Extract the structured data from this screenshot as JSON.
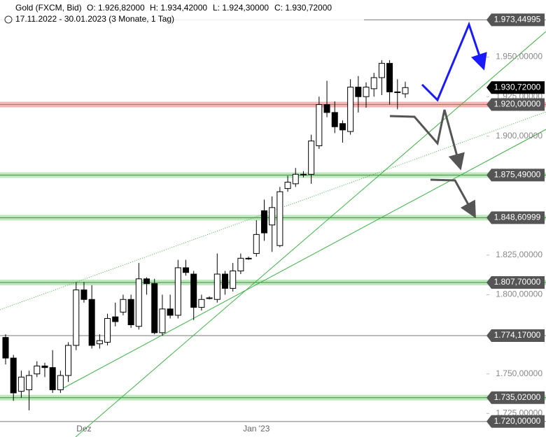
{
  "chart_data": {
    "type": "candlestick",
    "title": "Gold (FXCM, Bid)",
    "quote": [
      "O: 1.926,82000",
      "H: 1.934,42000",
      "L: 1.924,30000",
      "C: 1.930,72000"
    ],
    "subtitle": "17.11.2022 - 30.01.2023 (3 Monate, 1 Tag)",
    "categories": [
      null,
      null,
      null,
      null,
      null,
      null,
      null,
      null,
      null,
      null,
      "Dez",
      null,
      null,
      null,
      null,
      null,
      null,
      null,
      null,
      null,
      null,
      null,
      null,
      null,
      null,
      null,
      null,
      null,
      null,
      null,
      null,
      null,
      "Jan '23",
      null,
      null,
      null,
      null,
      null,
      null,
      null,
      null,
      null,
      null,
      null,
      null,
      null,
      null,
      null,
      null,
      null,
      null,
      null
    ],
    "open": [
      1773,
      1760,
      1739,
      1740,
      1750,
      1755,
      1754,
      1740,
      1749,
      1768,
      1803,
      1797,
      1769,
      1770,
      1786,
      1789,
      1797,
      1780,
      1810,
      1807,
      1776,
      1791,
      1787,
      1817,
      1813,
      1792,
      1798,
      1797,
      1813,
      1804,
      1815,
      1823,
      1826,
      1853,
      1844,
      1831,
      1867,
      1870,
      1876,
      1876,
      1894,
      1920,
      1915,
      1908,
      1903,
      1931,
      1925,
      1930,
      1937,
      1946,
      1928,
      1926.82
    ],
    "high": [
      1775,
      1762,
      1752,
      1752,
      1758,
      1757,
      1765,
      1752,
      1770,
      1808,
      1808,
      1806,
      1775,
      1788,
      1795,
      1800,
      1800,
      1820,
      1811,
      1810,
      1800,
      1800,
      1822,
      1822,
      1815,
      1800,
      1799,
      1826,
      1815,
      1820,
      1826,
      1824,
      1847,
      1860,
      1862,
      1868,
      1875,
      1880,
      1878,
      1901,
      1925,
      1935,
      1922,
      1910,
      1936,
      1938,
      1934,
      1940,
      1948,
      1948,
      1936,
      1934.42
    ],
    "low": [
      1756,
      1733,
      1735,
      1727,
      1748,
      1748,
      1738,
      1738,
      1745,
      1765,
      1795,
      1766,
      1766,
      1768,
      1780,
      1787,
      1779,
      1778,
      1800,
      1775,
      1774,
      1785,
      1785,
      1812,
      1784,
      1790,
      1797,
      1795,
      1800,
      1802,
      1813,
      1822,
      1824,
      1834,
      1827,
      1830,
      1865,
      1868,
      1874,
      1870,
      1892,
      1912,
      1902,
      1896,
      1901,
      1915,
      1918,
      1925,
      1926,
      1920,
      1917,
      1924.3
    ],
    "close": [
      1760,
      1738,
      1748,
      1749,
      1755,
      1754,
      1740,
      1749,
      1768,
      1803,
      1797,
      1768,
      1771,
      1785,
      1783,
      1797,
      1781,
      1810,
      1807,
      1776,
      1791,
      1787,
      1817,
      1814,
      1792,
      1797,
      1798,
      1813,
      1804,
      1815,
      1823,
      1823,
      1838,
      1839,
      1855,
      1865,
      1871,
      1876,
      1876,
      1897,
      1920,
      1915,
      1906,
      1904,
      1931,
      1925,
      1931,
      1937,
      1946,
      1928,
      1928,
      1930.72
    ],
    "up_color": "#ffffff",
    "down_color": "#000000",
    "ylim": [
      1719,
      1986
    ],
    "yticks": [
      {
        "value": 1950,
        "label": "1.950,00000"
      },
      {
        "value": 1925,
        "label": "1.925,00000"
      },
      {
        "value": 1900,
        "label": "1.900,00000"
      },
      {
        "value": 1825,
        "label": "1.825,00000"
      },
      {
        "value": 1800,
        "label": "1.800,00000"
      },
      {
        "value": 1750,
        "label": "1.750,00000"
      },
      {
        "value": 1725,
        "label": "1.725,00000"
      }
    ],
    "levels": [
      {
        "value": 1973.44995,
        "label": "1.973,44995",
        "band": null,
        "tag": "#555555"
      },
      {
        "value": 1930.72,
        "label": "1.930,72000",
        "band": "none",
        "tag": "#000000"
      },
      {
        "value": 1920,
        "label": "1.920,00000",
        "band": "#f4b4b4",
        "tag": "#555555"
      },
      {
        "value": 1875.49,
        "label": "1.875,49000",
        "band": "#bfe8bf",
        "tag": "#555555"
      },
      {
        "value": 1848.60999,
        "label": "1.848,60999",
        "band": "#bfe8bf",
        "tag": "#555555"
      },
      {
        "value": 1807.7,
        "label": "1.807,70000",
        "band": "#bfe8bf",
        "tag": "#555555"
      },
      {
        "value": 1774.17,
        "label": "1.774,17000",
        "band": null,
        "tag": "#555555"
      },
      {
        "value": 1735.02,
        "label": "1.735,02000",
        "band": "#bfe8bf",
        "tag": "#555555"
      },
      {
        "value": 1720,
        "label": "1.720,00000",
        "band": null,
        "tag": "#555555"
      }
    ]
  }
}
